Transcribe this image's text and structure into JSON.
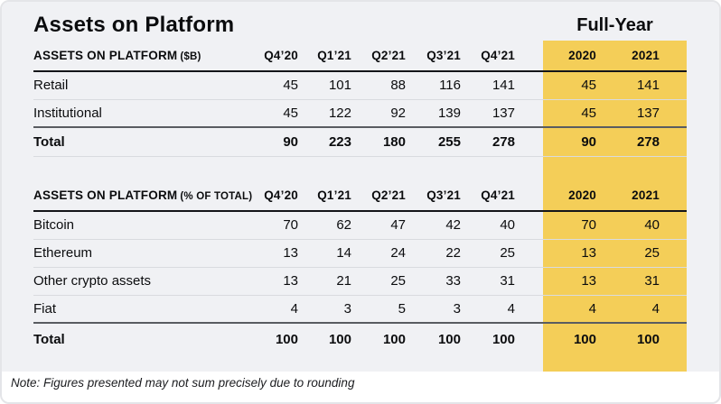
{
  "title": "Assets on Platform",
  "full_year_label": "Full-Year",
  "note": "Note: Figures presented may not sum precisely due to rounding",
  "colors": {
    "highlight": "#f4ce58",
    "panel_bg": "#f0f1f4",
    "text": "#0b0c0e"
  },
  "columns": [
    "Q4’20",
    "Q1’21",
    "Q2’21",
    "Q3’21",
    "Q4’21",
    "2020",
    "2021"
  ],
  "tables": [
    {
      "header": "ASSETS ON PLATFORM",
      "header_sub": "($B)",
      "rows": [
        {
          "label": "Retail",
          "values": [
            45,
            101,
            88,
            116,
            141,
            45,
            141
          ],
          "bold": false
        },
        {
          "label": "Institutional",
          "values": [
            45,
            122,
            92,
            139,
            137,
            45,
            137
          ],
          "bold": false
        },
        {
          "label": "Total",
          "values": [
            90,
            223,
            180,
            255,
            278,
            90,
            278
          ],
          "bold": true
        }
      ]
    },
    {
      "header": "ASSETS ON PLATFORM",
      "header_sub": "(% OF TOTAL)",
      "rows": [
        {
          "label": "Bitcoin",
          "values": [
            70,
            62,
            47,
            42,
            40,
            70,
            40
          ],
          "bold": false
        },
        {
          "label": "Ethereum",
          "values": [
            13,
            14,
            24,
            22,
            25,
            13,
            25
          ],
          "bold": false
        },
        {
          "label": "Other crypto assets",
          "values": [
            13,
            21,
            25,
            33,
            31,
            13,
            31
          ],
          "bold": false
        },
        {
          "label": "Fiat",
          "values": [
            4,
            3,
            5,
            3,
            4,
            4,
            4
          ],
          "bold": false
        },
        {
          "label": "Total",
          "values": [
            100,
            100,
            100,
            100,
            100,
            100,
            100
          ],
          "bold": true
        }
      ]
    }
  ]
}
